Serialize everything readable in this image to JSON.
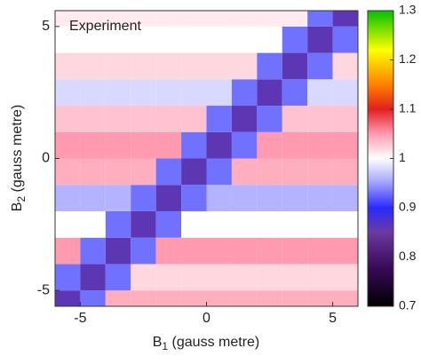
{
  "chart_data": {
    "type": "heatmap",
    "annotation": "Experiment",
    "xlabel": [
      "B",
      "1",
      " (gauss metre)"
    ],
    "ylabel": [
      "B",
      "2",
      " (gauss metre)"
    ],
    "xlim": [
      -6,
      6
    ],
    "ylim": [
      -5.6,
      5.6
    ],
    "xticks": [
      -5,
      0,
      5
    ],
    "yticks": [
      -5,
      0,
      5
    ],
    "x": [
      -5.5,
      -4.5,
      -3.5,
      -2.5,
      -1.5,
      -0.5,
      0.5,
      1.5,
      2.5,
      3.5,
      4.5,
      5.5
    ],
    "y": [
      -5.5,
      -4.5,
      -3.5,
      -2.5,
      -1.5,
      -0.5,
      0.5,
      1.5,
      2.5,
      3.5,
      4.5,
      5.5
    ],
    "z": [
      [
        0.86,
        0.93,
        1.04,
        1.04,
        1.04,
        1.04,
        1.04,
        1.04,
        1.04,
        1.04,
        1.04,
        1.04
      ],
      [
        0.93,
        0.86,
        0.93,
        1.02,
        1.02,
        1.02,
        1.02,
        1.02,
        1.02,
        1.02,
        1.02,
        1.02
      ],
      [
        1.05,
        0.93,
        0.86,
        0.93,
        1.05,
        1.05,
        1.05,
        1.05,
        1.05,
        1.05,
        1.05,
        1.05
      ],
      [
        1,
        1,
        0.93,
        0.86,
        0.93,
        1,
        1,
        1,
        1,
        1,
        1,
        1
      ],
      [
        0.96,
        0.96,
        0.96,
        0.93,
        0.86,
        0.93,
        0.96,
        0.96,
        0.96,
        0.96,
        0.96,
        0.96
      ],
      [
        1.04,
        1.04,
        1.04,
        1.04,
        0.93,
        0.86,
        0.93,
        1.04,
        1.04,
        1.04,
        1.04,
        1.04
      ],
      [
        1.05,
        1.05,
        1.05,
        1.05,
        1.05,
        0.93,
        0.86,
        0.93,
        1.05,
        1.05,
        1.05,
        1.05
      ],
      [
        1.03,
        1.03,
        1.03,
        1.03,
        1.03,
        1.03,
        0.93,
        0.86,
        0.93,
        1.03,
        1.03,
        1.03
      ],
      [
        0.98,
        0.98,
        0.98,
        0.98,
        0.98,
        0.98,
        0.98,
        0.93,
        0.86,
        0.93,
        0.98,
        0.98
      ],
      [
        1.02,
        1.02,
        1.02,
        1.02,
        1.02,
        1.02,
        1.02,
        1.02,
        0.93,
        0.86,
        0.93,
        1.02
      ],
      [
        1,
        1,
        1,
        1,
        1,
        1,
        1,
        1,
        1,
        0.93,
        0.86,
        0.93
      ],
      [
        1.01,
        1.01,
        1.01,
        1.01,
        1.01,
        1.01,
        1.01,
        1.01,
        1.01,
        1.01,
        0.93,
        0.86
      ]
    ],
    "clim": [
      0.7,
      1.3
    ],
    "cticks": [
      0.7,
      0.8,
      0.9,
      1,
      1.1,
      1.2,
      1.3
    ],
    "colormap": [
      {
        "value": 0.7,
        "color": "#000000"
      },
      {
        "value": 0.78,
        "color": "#3a0a5a"
      },
      {
        "value": 0.85,
        "color": "#6a3aa0"
      },
      {
        "value": 0.9,
        "color": "#2a2aff"
      },
      {
        "value": 0.95,
        "color": "#a0a0ff"
      },
      {
        "value": 1,
        "color": "#ffffff"
      },
      {
        "value": 1.05,
        "color": "#ff9ab0"
      },
      {
        "value": 1.1,
        "color": "#e02020"
      },
      {
        "value": 1.15,
        "color": "#ff8000"
      },
      {
        "value": 1.22,
        "color": "#ffff00"
      },
      {
        "value": 1.3,
        "color": "#00c000"
      }
    ]
  }
}
